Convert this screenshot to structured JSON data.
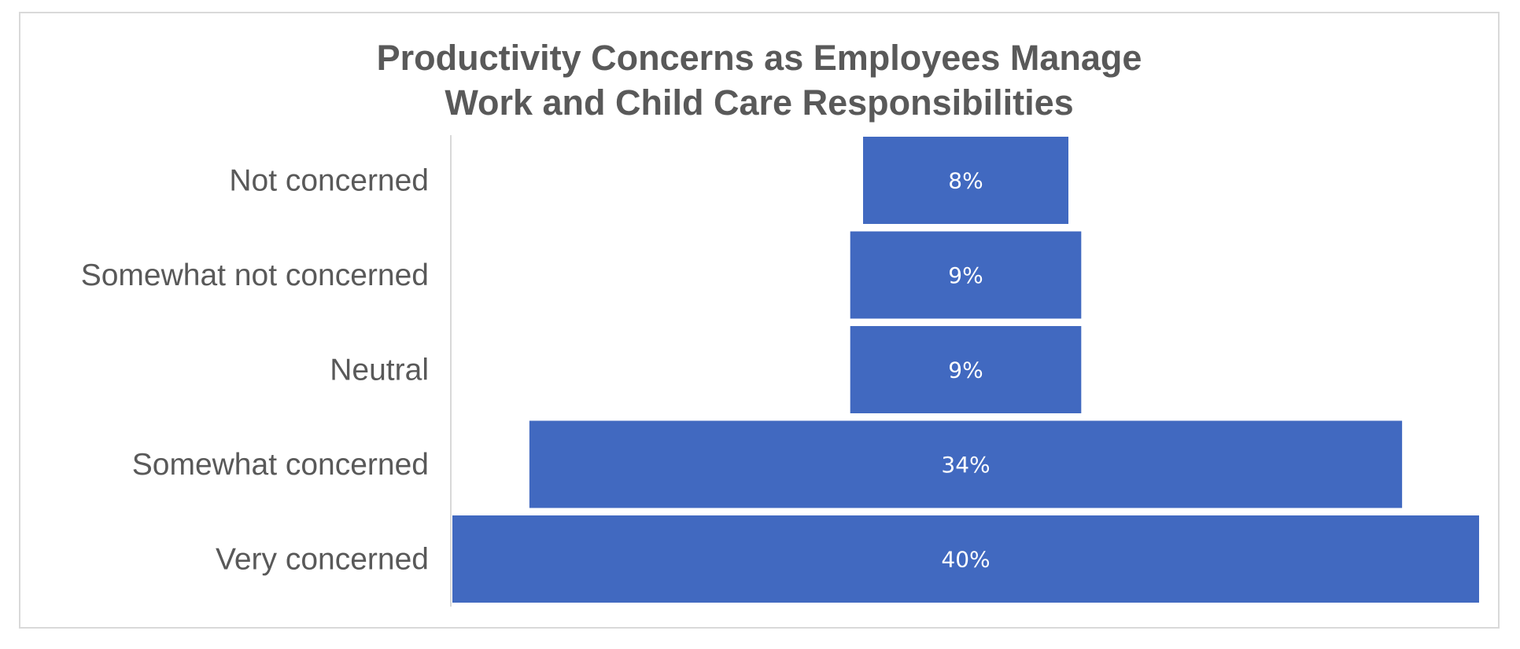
{
  "chart_data": {
    "type": "bar",
    "subtype": "funnel",
    "orientation": "horizontal",
    "title_lines": [
      "Productivity Concerns as Employees Manage",
      "Work and Child Care Responsibilities"
    ],
    "categories": [
      "Not concerned",
      "Somewhat not concerned",
      "Neutral",
      "Somewhat concerned",
      "Very concerned"
    ],
    "values": [
      8,
      9,
      9,
      34,
      40
    ],
    "data_labels": [
      "8%",
      "9%",
      "9%",
      "34%",
      "40%"
    ],
    "unit": "%",
    "bars_centered": true,
    "grid": false,
    "legend": "none",
    "colors": {
      "bar": "#4169c0",
      "bar_label": "#ffffff",
      "category_label": "#595959",
      "title": "#595959",
      "axis_line": "#d9d9d9",
      "frame": "#d9d9d9"
    }
  }
}
